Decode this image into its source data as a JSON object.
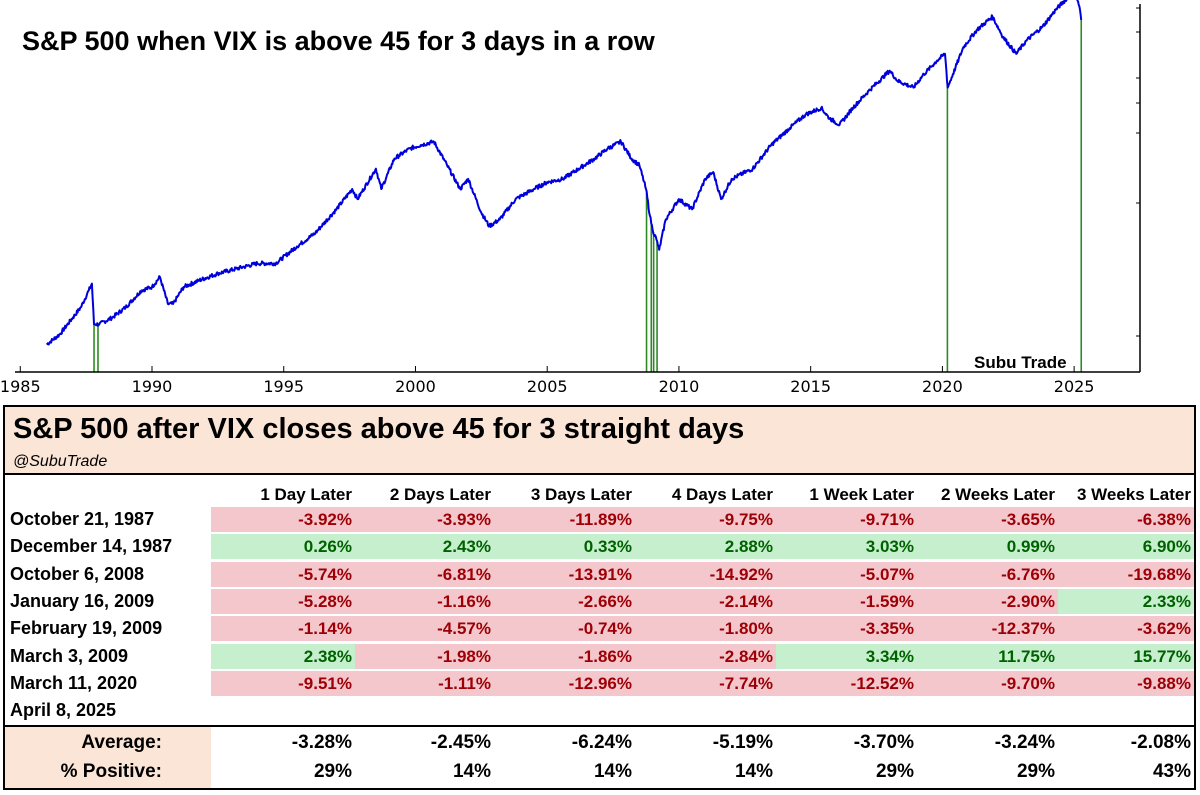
{
  "chart_data": {
    "type": "line",
    "title": "S&P 500 when VIX is above 45 for 3 days in a row",
    "xlabel": "",
    "ylabel": "",
    "xlim": [
      1984.8,
      2027.5
    ],
    "ylim": [
      0,
      1
    ],
    "y_scale": "log",
    "y_tick_labels_shown": false,
    "grid": false,
    "x_ticks": [
      1985,
      1990,
      1995,
      2000,
      2005,
      2010,
      2015,
      2020,
      2025
    ],
    "series": [
      {
        "color": "#0000dd",
        "points": [
          [
            1986.0,
            0.04
          ],
          [
            1986.5,
            0.07
          ],
          [
            1987.0,
            0.12
          ],
          [
            1987.3,
            0.15
          ],
          [
            1987.6,
            0.2
          ],
          [
            1987.72,
            0.22
          ],
          [
            1987.8,
            0.1
          ],
          [
            1988.0,
            0.1
          ],
          [
            1988.5,
            0.12
          ],
          [
            1989.0,
            0.15
          ],
          [
            1989.6,
            0.2
          ],
          [
            1990.0,
            0.21
          ],
          [
            1990.3,
            0.24
          ],
          [
            1990.6,
            0.16
          ],
          [
            1990.8,
            0.16
          ],
          [
            1991.2,
            0.21
          ],
          [
            1991.8,
            0.23
          ],
          [
            1992.5,
            0.25
          ],
          [
            1993.5,
            0.27
          ],
          [
            1994.0,
            0.28
          ],
          [
            1994.7,
            0.28
          ],
          [
            1995.5,
            0.33
          ],
          [
            1996.2,
            0.37
          ],
          [
            1997.0,
            0.44
          ],
          [
            1997.6,
            0.5
          ],
          [
            1997.8,
            0.47
          ],
          [
            1998.5,
            0.56
          ],
          [
            1998.7,
            0.5
          ],
          [
            1999.2,
            0.59
          ],
          [
            1999.8,
            0.62
          ],
          [
            2000.2,
            0.63
          ],
          [
            2000.7,
            0.64
          ],
          [
            2001.2,
            0.57
          ],
          [
            2001.7,
            0.5
          ],
          [
            2002.0,
            0.53
          ],
          [
            2002.5,
            0.43
          ],
          [
            2002.8,
            0.39
          ],
          [
            2003.2,
            0.41
          ],
          [
            2003.8,
            0.47
          ],
          [
            2004.5,
            0.5
          ],
          [
            2005.0,
            0.52
          ],
          [
            2005.6,
            0.53
          ],
          [
            2006.2,
            0.56
          ],
          [
            2006.8,
            0.59
          ],
          [
            2007.3,
            0.62
          ],
          [
            2007.8,
            0.64
          ],
          [
            2008.2,
            0.59
          ],
          [
            2008.5,
            0.57
          ],
          [
            2008.75,
            0.5
          ],
          [
            2008.9,
            0.42
          ],
          [
            2009.0,
            0.38
          ],
          [
            2009.15,
            0.35
          ],
          [
            2009.25,
            0.32
          ],
          [
            2009.5,
            0.41
          ],
          [
            2010.0,
            0.47
          ],
          [
            2010.5,
            0.44
          ],
          [
            2011.0,
            0.53
          ],
          [
            2011.3,
            0.55
          ],
          [
            2011.6,
            0.47
          ],
          [
            2012.0,
            0.53
          ],
          [
            2012.8,
            0.56
          ],
          [
            2013.5,
            0.63
          ],
          [
            2014.2,
            0.68
          ],
          [
            2014.8,
            0.72
          ],
          [
            2015.4,
            0.74
          ],
          [
            2015.7,
            0.71
          ],
          [
            2016.1,
            0.69
          ],
          [
            2016.6,
            0.74
          ],
          [
            2017.2,
            0.79
          ],
          [
            2018.0,
            0.85
          ],
          [
            2018.3,
            0.82
          ],
          [
            2018.9,
            0.8
          ],
          [
            2019.3,
            0.84
          ],
          [
            2019.8,
            0.88
          ],
          [
            2020.1,
            0.9
          ],
          [
            2020.2,
            0.8
          ],
          [
            2020.4,
            0.84
          ],
          [
            2020.8,
            0.92
          ],
          [
            2021.3,
            0.97
          ],
          [
            2021.9,
            1.01
          ],
          [
            2022.3,
            0.95
          ],
          [
            2022.8,
            0.9
          ],
          [
            2023.2,
            0.94
          ],
          [
            2023.8,
            0.98
          ],
          [
            2024.3,
            1.03
          ],
          [
            2024.8,
            1.07
          ],
          [
            2025.05,
            1.08
          ],
          [
            2025.2,
            1.04
          ],
          [
            2025.27,
            1.0
          ]
        ]
      }
    ],
    "event_markers": [
      1987.8,
      1987.95,
      2008.77,
      2008.95,
      2009.04,
      2009.17,
      2020.19,
      2025.27
    ],
    "marker_color": "#2e8b22",
    "annotation": "Subu Trade"
  },
  "table": {
    "title": "S&P 500 after VIX closes above 45 for 3 straight days",
    "handle": "@SubuTrade",
    "columns": [
      "1 Day Later",
      "2 Days Later",
      "3 Days Later",
      "4 Days Later",
      "1 Week Later",
      "2 Weeks Later",
      "3 Weeks Later"
    ],
    "rows": [
      {
        "date": "October 21, 1987",
        "values": [
          "-3.92%",
          "-3.93%",
          "-11.89%",
          "-9.75%",
          "-9.71%",
          "-3.65%",
          "-6.38%"
        ]
      },
      {
        "date": "December 14, 1987",
        "values": [
          "0.26%",
          "2.43%",
          "0.33%",
          "2.88%",
          "3.03%",
          "0.99%",
          "6.90%"
        ]
      },
      {
        "date": "October 6, 2008",
        "values": [
          "-5.74%",
          "-6.81%",
          "-13.91%",
          "-14.92%",
          "-5.07%",
          "-6.76%",
          "-19.68%"
        ]
      },
      {
        "date": "January 16, 2009",
        "values": [
          "-5.28%",
          "-1.16%",
          "-2.66%",
          "-2.14%",
          "-1.59%",
          "-2.90%",
          "2.33%"
        ]
      },
      {
        "date": "February 19, 2009",
        "values": [
          "-1.14%",
          "-4.57%",
          "-0.74%",
          "-1.80%",
          "-3.35%",
          "-12.37%",
          "-3.62%"
        ]
      },
      {
        "date": "March 3, 2009",
        "values": [
          "2.38%",
          "-1.98%",
          "-1.86%",
          "-2.84%",
          "3.34%",
          "11.75%",
          "15.77%"
        ]
      },
      {
        "date": "March 11, 2020",
        "values": [
          "-9.51%",
          "-1.11%",
          "-12.96%",
          "-7.74%",
          "-12.52%",
          "-9.70%",
          "-9.88%"
        ]
      },
      {
        "date": "April 8, 2025",
        "values": [
          "",
          "",
          "",
          "",
          "",
          "",
          ""
        ]
      }
    ],
    "summary": [
      {
        "label": "Average:",
        "values": [
          "-3.28%",
          "-2.45%",
          "-6.24%",
          "-5.19%",
          "-3.70%",
          "-3.24%",
          "-2.08%"
        ]
      },
      {
        "label": "% Positive:",
        "values": [
          "29%",
          "14%",
          "14%",
          "14%",
          "29%",
          "29%",
          "43%"
        ]
      }
    ],
    "colors": {
      "negative_bg": "#f4c7cc",
      "negative_text": "#9c0006",
      "positive_bg": "#c6efce",
      "positive_text": "#006100",
      "header_bg": "#fbe5d6"
    }
  }
}
